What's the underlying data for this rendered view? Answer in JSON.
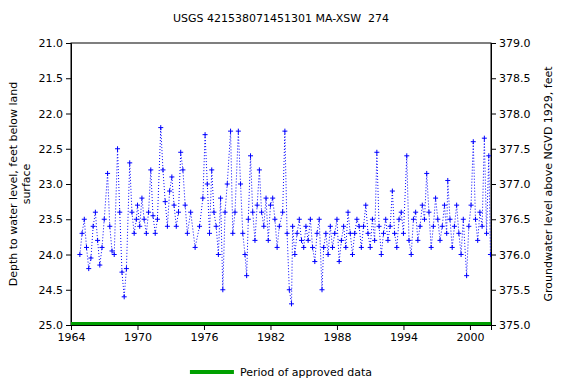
{
  "chart_data": {
    "type": "line",
    "title": "USGS 421538071451301 MA-XSW  274",
    "y_label": "Depth to water level, feet below land surface",
    "y2_label": "Groundwater level above NGVD 1929, feet",
    "xlim": [
      1964,
      2001.9
    ],
    "xticks": [
      1964,
      1970,
      1976,
      1982,
      1988,
      1994,
      2000
    ],
    "ylim": [
      21,
      25
    ],
    "yticks": [
      {
        "value": 21,
        "label": "21.0"
      },
      21.5,
      {
        "value": 22,
        "label": "22.0"
      },
      22.5,
      {
        "value": 23,
        "label": "23.0"
      },
      23.5,
      {
        "value": 24,
        "label": "24.0"
      },
      24.5,
      {
        "value": 25,
        "label": "25.0"
      }
    ],
    "y2lim": [
      379,
      375
    ],
    "y2ticks": [
      {
        "value": 379,
        "label": "379.0"
      },
      378.5,
      {
        "value": 378,
        "label": "378.0"
      },
      377.5,
      {
        "value": 377,
        "label": "377.0"
      },
      376.5,
      {
        "value": 376,
        "label": "376.0"
      },
      375.5,
      {
        "value": 375,
        "label": "375.0"
      }
    ],
    "grid": false,
    "legend": "bottom",
    "series": [
      {
        "color": "#0000ff",
        "type": "line",
        "marker": "plus",
        "line_style": "dotted",
        "x": [
          1964.8,
          1965.0,
          1965.2,
          1965.4,
          1965.6,
          1965.8,
          1966.0,
          1966.2,
          1966.4,
          1966.6,
          1966.8,
          1967.0,
          1967.3,
          1967.5,
          1967.7,
          1967.9,
          1968.2,
          1968.4,
          1968.6,
          1968.8,
          1969.0,
          1969.3,
          1969.5,
          1969.7,
          1969.9,
          1970.0,
          1970.2,
          1970.4,
          1970.6,
          1970.8,
          1971.0,
          1971.2,
          1971.4,
          1971.6,
          1971.8,
          1972.1,
          1972.3,
          1972.5,
          1972.7,
          1972.9,
          1973.1,
          1973.3,
          1973.5,
          1973.7,
          1973.9,
          1974.1,
          1974.3,
          1974.5,
          1974.8,
          1975.2,
          1975.6,
          1975.9,
          1976.1,
          1976.3,
          1976.5,
          1976.7,
          1976.9,
          1977.1,
          1977.3,
          1977.5,
          1977.7,
          1977.9,
          1978.1,
          1978.4,
          1978.6,
          1978.8,
          1979.1,
          1979.3,
          1979.5,
          1979.7,
          1979.85,
          1980.0,
          1980.2,
          1980.4,
          1980.6,
          1980.8,
          1981.0,
          1981.2,
          1981.4,
          1981.6,
          1981.8,
          1982.0,
          1982.2,
          1982.4,
          1982.6,
          1982.8,
          1983.1,
          1983.3,
          1983.5,
          1983.7,
          1983.9,
          1984.0,
          1984.2,
          1984.4,
          1984.6,
          1984.8,
          1985.0,
          1985.2,
          1985.4,
          1985.6,
          1985.8,
          1986.0,
          1986.2,
          1986.4,
          1986.65,
          1986.8,
          1987.0,
          1987.2,
          1987.4,
          1987.6,
          1987.8,
          1988.0,
          1988.2,
          1988.4,
          1988.6,
          1988.8,
          1989.0,
          1989.2,
          1989.4,
          1989.6,
          1989.8,
          1990.0,
          1990.2,
          1990.4,
          1990.6,
          1990.8,
          1991.0,
          1991.2,
          1991.4,
          1991.6,
          1991.8,
          1992.0,
          1992.2,
          1992.4,
          1992.6,
          1992.8,
          1993.0,
          1993.2,
          1993.4,
          1993.6,
          1993.8,
          1994.0,
          1994.3,
          1994.5,
          1994.7,
          1994.9,
          1995.1,
          1995.3,
          1995.5,
          1995.7,
          1995.9,
          1996.1,
          1996.3,
          1996.5,
          1996.7,
          1996.9,
          1997.1,
          1997.3,
          1997.5,
          1997.7,
          1997.9,
          1998.0,
          1998.2,
          1998.4,
          1998.6,
          1998.8,
          1999.0,
          1999.2,
          1999.4,
          1999.7,
          1999.9,
          2000.1,
          2000.3,
          2000.5,
          2000.7,
          2000.9,
          2001.1,
          2001.3,
          2001.5,
          2001.7,
          2001.85
        ],
        "values": [
          24.0,
          23.7,
          23.5,
          23.9,
          24.2,
          24.05,
          23.6,
          23.4,
          23.8,
          24.15,
          23.9,
          23.5,
          22.85,
          23.6,
          23.95,
          24.0,
          22.5,
          23.4,
          24.25,
          24.6,
          24.2,
          22.7,
          23.4,
          23.7,
          23.5,
          23.3,
          23.6,
          23.2,
          23.5,
          23.7,
          23.4,
          22.8,
          23.45,
          23.7,
          23.5,
          22.2,
          22.8,
          23.25,
          23.6,
          23.1,
          22.9,
          23.3,
          23.6,
          23.4,
          22.55,
          22.8,
          23.3,
          23.7,
          23.4,
          23.9,
          23.6,
          23.2,
          22.3,
          23.0,
          23.7,
          22.8,
          23.4,
          23.6,
          24.0,
          23.2,
          24.5,
          23.4,
          23.0,
          22.25,
          23.7,
          23.4,
          22.25,
          23.0,
          23.7,
          24.0,
          24.3,
          23.5,
          22.6,
          23.4,
          23.8,
          23.3,
          22.8,
          23.4,
          23.6,
          23.2,
          23.8,
          23.3,
          23.2,
          23.5,
          23.9,
          23.6,
          23.4,
          22.25,
          23.7,
          24.5,
          24.7,
          23.6,
          24.0,
          23.7,
          23.5,
          23.8,
          23.9,
          23.6,
          23.8,
          23.5,
          23.9,
          24.1,
          23.7,
          23.5,
          24.5,
          23.9,
          23.7,
          24.0,
          23.6,
          23.9,
          23.7,
          23.5,
          24.1,
          23.8,
          23.6,
          23.9,
          23.4,
          23.7,
          24.0,
          23.7,
          23.5,
          23.6,
          23.9,
          23.6,
          23.3,
          23.7,
          23.9,
          23.5,
          23.8,
          22.55,
          23.6,
          24.0,
          23.7,
          23.5,
          23.8,
          23.6,
          23.1,
          23.7,
          23.9,
          23.5,
          23.4,
          23.7,
          22.6,
          23.8,
          24.0,
          23.5,
          23.4,
          23.8,
          23.6,
          23.3,
          23.5,
          22.85,
          23.4,
          23.9,
          23.6,
          23.2,
          23.5,
          23.8,
          23.6,
          23.3,
          23.7,
          22.95,
          23.5,
          23.9,
          23.6,
          23.3,
          23.7,
          24.0,
          23.5,
          24.3,
          23.6,
          23.3,
          22.4,
          23.5,
          23.8,
          23.4,
          23.6,
          22.35,
          23.7,
          22.6,
          24.0
        ]
      },
      {
        "name": "Period of approved data",
        "color": "#00a000",
        "type": "line",
        "line_style": "solid",
        "x": [
          1964,
          2001.9
        ],
        "values": [
          25,
          25
        ]
      }
    ]
  }
}
